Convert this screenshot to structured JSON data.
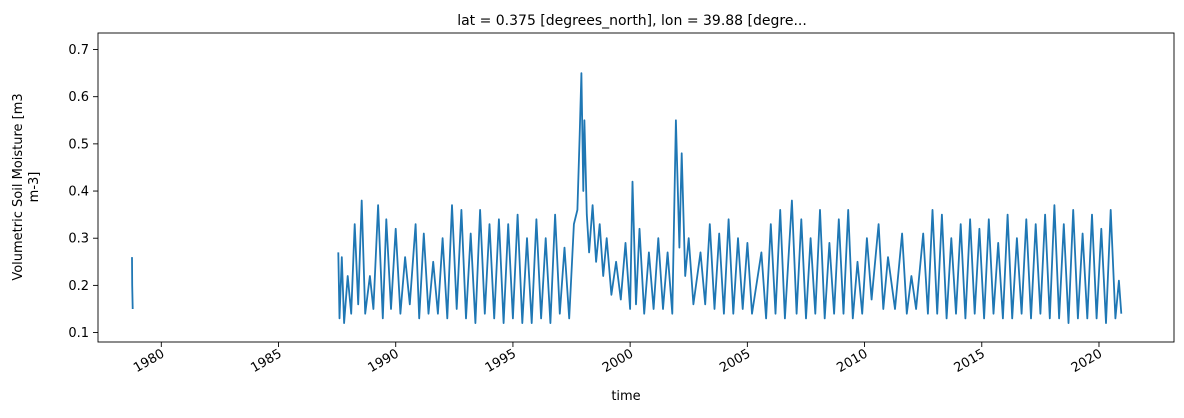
{
  "chart_data": {
    "type": "line",
    "title": "lat = 0.375 [degrees_north], lon = 39.88 [degre...",
    "xlabel": "time",
    "ylabel_line1": "Volumetric Soil Moisture [m3",
    "ylabel_line2": "m-3]",
    "x_ticks": [
      "1980",
      "1985",
      "1990",
      "1995",
      "2000",
      "2005",
      "2010",
      "2015",
      "2020"
    ],
    "y_ticks": [
      "0.1",
      "0.2",
      "0.3",
      "0.4",
      "0.5",
      "0.6",
      "0.7"
    ],
    "xlim": [
      1977.3,
      2023.2
    ],
    "ylim": [
      0.08,
      0.735
    ],
    "grid": false,
    "series": [
      {
        "color": "#1f77b4",
        "points": [
          [
            1978.75,
            0.26
          ],
          [
            1978.76,
            0.2
          ],
          [
            1978.78,
            0.15
          ],
          [
            1987.55,
            0.27
          ],
          [
            1987.6,
            0.13
          ],
          [
            1987.7,
            0.26
          ],
          [
            1987.8,
            0.12
          ],
          [
            1987.95,
            0.22
          ],
          [
            1988.1,
            0.14
          ],
          [
            1988.25,
            0.33
          ],
          [
            1988.4,
            0.16
          ],
          [
            1988.55,
            0.38
          ],
          [
            1988.7,
            0.14
          ],
          [
            1988.9,
            0.22
          ],
          [
            1989.05,
            0.15
          ],
          [
            1989.25,
            0.37
          ],
          [
            1989.45,
            0.13
          ],
          [
            1989.6,
            0.34
          ],
          [
            1989.8,
            0.15
          ],
          [
            1990.0,
            0.32
          ],
          [
            1990.2,
            0.14
          ],
          [
            1990.4,
            0.26
          ],
          [
            1990.6,
            0.16
          ],
          [
            1990.85,
            0.33
          ],
          [
            1991.0,
            0.13
          ],
          [
            1991.2,
            0.31
          ],
          [
            1991.4,
            0.14
          ],
          [
            1991.6,
            0.25
          ],
          [
            1991.8,
            0.14
          ],
          [
            1992.0,
            0.3
          ],
          [
            1992.2,
            0.13
          ],
          [
            1992.4,
            0.37
          ],
          [
            1992.6,
            0.15
          ],
          [
            1992.8,
            0.36
          ],
          [
            1993.0,
            0.13
          ],
          [
            1993.2,
            0.31
          ],
          [
            1993.4,
            0.12
          ],
          [
            1993.6,
            0.36
          ],
          [
            1993.8,
            0.14
          ],
          [
            1994.0,
            0.33
          ],
          [
            1994.2,
            0.13
          ],
          [
            1994.4,
            0.34
          ],
          [
            1994.6,
            0.12
          ],
          [
            1994.8,
            0.33
          ],
          [
            1995.0,
            0.13
          ],
          [
            1995.2,
            0.35
          ],
          [
            1995.4,
            0.12
          ],
          [
            1995.6,
            0.3
          ],
          [
            1995.8,
            0.12
          ],
          [
            1996.0,
            0.34
          ],
          [
            1996.2,
            0.13
          ],
          [
            1996.4,
            0.3
          ],
          [
            1996.6,
            0.12
          ],
          [
            1996.8,
            0.35
          ],
          [
            1997.0,
            0.14
          ],
          [
            1997.2,
            0.28
          ],
          [
            1997.4,
            0.13
          ],
          [
            1997.6,
            0.33
          ],
          [
            1997.75,
            0.36
          ],
          [
            1997.85,
            0.52
          ],
          [
            1997.92,
            0.65
          ],
          [
            1998.0,
            0.4
          ],
          [
            1998.05,
            0.55
          ],
          [
            1998.15,
            0.35
          ],
          [
            1998.25,
            0.27
          ],
          [
            1998.4,
            0.37
          ],
          [
            1998.55,
            0.25
          ],
          [
            1998.7,
            0.33
          ],
          [
            1998.85,
            0.22
          ],
          [
            1999.0,
            0.3
          ],
          [
            1999.2,
            0.18
          ],
          [
            1999.4,
            0.25
          ],
          [
            1999.6,
            0.17
          ],
          [
            1999.8,
            0.29
          ],
          [
            2000.0,
            0.15
          ],
          [
            2000.1,
            0.42
          ],
          [
            2000.25,
            0.16
          ],
          [
            2000.4,
            0.32
          ],
          [
            2000.6,
            0.14
          ],
          [
            2000.8,
            0.27
          ],
          [
            2001.0,
            0.15
          ],
          [
            2001.2,
            0.3
          ],
          [
            2001.4,
            0.15
          ],
          [
            2001.6,
            0.27
          ],
          [
            2001.8,
            0.14
          ],
          [
            2001.95,
            0.55
          ],
          [
            2002.1,
            0.28
          ],
          [
            2002.2,
            0.48
          ],
          [
            2002.35,
            0.22
          ],
          [
            2002.5,
            0.3
          ],
          [
            2002.7,
            0.16
          ],
          [
            2003.0,
            0.27
          ],
          [
            2003.2,
            0.16
          ],
          [
            2003.4,
            0.33
          ],
          [
            2003.6,
            0.15
          ],
          [
            2003.8,
            0.31
          ],
          [
            2004.0,
            0.14
          ],
          [
            2004.2,
            0.34
          ],
          [
            2004.4,
            0.14
          ],
          [
            2004.6,
            0.3
          ],
          [
            2004.8,
            0.15
          ],
          [
            2005.0,
            0.29
          ],
          [
            2005.2,
            0.14
          ],
          [
            2005.6,
            0.27
          ],
          [
            2005.8,
            0.13
          ],
          [
            2006.0,
            0.33
          ],
          [
            2006.2,
            0.14
          ],
          [
            2006.4,
            0.36
          ],
          [
            2006.6,
            0.13
          ],
          [
            2006.9,
            0.38
          ],
          [
            2007.1,
            0.14
          ],
          [
            2007.3,
            0.34
          ],
          [
            2007.5,
            0.13
          ],
          [
            2007.7,
            0.3
          ],
          [
            2007.9,
            0.14
          ],
          [
            2008.1,
            0.36
          ],
          [
            2008.3,
            0.13
          ],
          [
            2008.5,
            0.29
          ],
          [
            2008.7,
            0.14
          ],
          [
            2008.9,
            0.34
          ],
          [
            2009.1,
            0.14
          ],
          [
            2009.3,
            0.36
          ],
          [
            2009.5,
            0.13
          ],
          [
            2009.7,
            0.25
          ],
          [
            2009.9,
            0.14
          ],
          [
            2010.1,
            0.3
          ],
          [
            2010.3,
            0.17
          ],
          [
            2010.6,
            0.33
          ],
          [
            2010.8,
            0.15
          ],
          [
            2011.0,
            0.26
          ],
          [
            2011.3,
            0.15
          ],
          [
            2011.6,
            0.31
          ],
          [
            2011.8,
            0.14
          ],
          [
            2012.0,
            0.22
          ],
          [
            2012.2,
            0.15
          ],
          [
            2012.5,
            0.31
          ],
          [
            2012.7,
            0.14
          ],
          [
            2012.9,
            0.36
          ],
          [
            2013.1,
            0.14
          ],
          [
            2013.3,
            0.35
          ],
          [
            2013.5,
            0.13
          ],
          [
            2013.7,
            0.3
          ],
          [
            2013.9,
            0.14
          ],
          [
            2014.1,
            0.33
          ],
          [
            2014.3,
            0.13
          ],
          [
            2014.5,
            0.34
          ],
          [
            2014.7,
            0.14
          ],
          [
            2014.9,
            0.32
          ],
          [
            2015.1,
            0.13
          ],
          [
            2015.3,
            0.34
          ],
          [
            2015.5,
            0.14
          ],
          [
            2015.7,
            0.29
          ],
          [
            2015.9,
            0.13
          ],
          [
            2016.1,
            0.35
          ],
          [
            2016.3,
            0.13
          ],
          [
            2016.5,
            0.3
          ],
          [
            2016.7,
            0.14
          ],
          [
            2016.9,
            0.34
          ],
          [
            2017.1,
            0.13
          ],
          [
            2017.3,
            0.33
          ],
          [
            2017.5,
            0.14
          ],
          [
            2017.7,
            0.35
          ],
          [
            2017.9,
            0.13
          ],
          [
            2018.1,
            0.37
          ],
          [
            2018.3,
            0.13
          ],
          [
            2018.5,
            0.33
          ],
          [
            2018.7,
            0.12
          ],
          [
            2018.9,
            0.36
          ],
          [
            2019.1,
            0.13
          ],
          [
            2019.3,
            0.31
          ],
          [
            2019.5,
            0.13
          ],
          [
            2019.7,
            0.35
          ],
          [
            2019.9,
            0.13
          ],
          [
            2020.1,
            0.32
          ],
          [
            2020.3,
            0.12
          ],
          [
            2020.5,
            0.36
          ],
          [
            2020.7,
            0.13
          ],
          [
            2020.85,
            0.21
          ],
          [
            2020.95,
            0.14
          ]
        ]
      }
    ]
  }
}
